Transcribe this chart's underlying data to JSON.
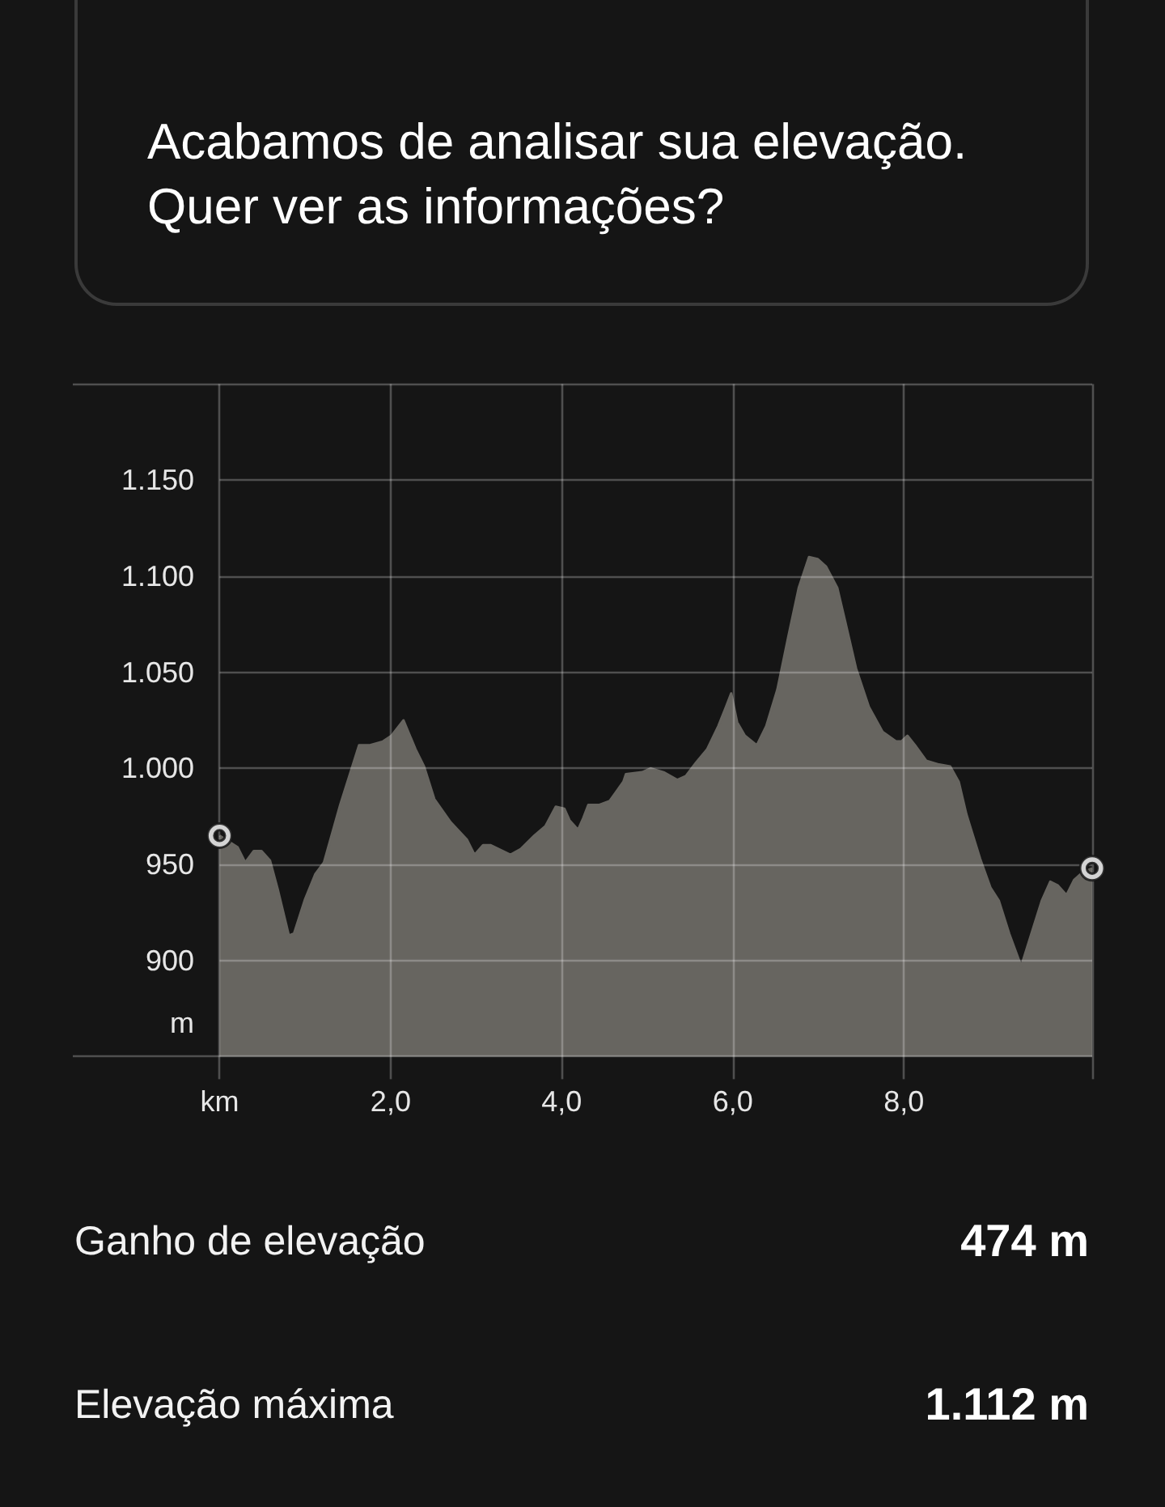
{
  "chart_data": {
    "type": "area",
    "title": "Acabamos de analisar sua elevação. Quer ver as informações?",
    "ylabel": "m",
    "xlim": [
      0,
      10.2
    ],
    "ylim": [
      850,
      1200
    ],
    "xticks": [
      {
        "value": 0,
        "label": "km"
      },
      {
        "value": 2,
        "label": "2,0"
      },
      {
        "value": 4,
        "label": "4,0"
      },
      {
        "value": 6,
        "label": "6,0"
      },
      {
        "value": 8,
        "label": "8,0"
      },
      {
        "value": 10.2,
        "label": null
      }
    ],
    "yticks": [
      {
        "value": 850,
        "label": null
      },
      900,
      950,
      {
        "value": 1000,
        "label": "1.000"
      },
      {
        "value": 1050,
        "label": "1.050"
      },
      {
        "value": 1100,
        "label": "1.100"
      },
      {
        "value": 1150,
        "label": "1.150"
      },
      {
        "value": 1200,
        "label": null
      }
    ],
    "grid": true,
    "series": [
      {
        "color": "#676560",
        "x": [
          0,
          0.21,
          0.3,
          0.4,
          0.49,
          0.59,
          0.68,
          0.81,
          0.87,
          1.0,
          1.12,
          1.22,
          1.41,
          1.63,
          1.75,
          1.91,
          2.01,
          2.15,
          2.29,
          2.39,
          2.51,
          2.7,
          2.89,
          2.98,
          3.08,
          3.17,
          3.4,
          3.52,
          3.68,
          3.81,
          3.93,
          4.03,
          4.09,
          4.19,
          4.25,
          4.31,
          4.44,
          4.56,
          4.72,
          4.75,
          4.94,
          5.04,
          5.19,
          5.35,
          5.45,
          5.57,
          5.7,
          5.83,
          5.92,
          5.98,
          6.05,
          6.14,
          6.28,
          6.39,
          6.52,
          6.65,
          6.77,
          6.89,
          6.99,
          7.09,
          7.22,
          7.31,
          7.44,
          7.59,
          7.75,
          7.91,
          7.97,
          8.04,
          8.13,
          8.26,
          8.41,
          8.54,
          8.64,
          8.73,
          8.89,
          9.01,
          9.11,
          9.23,
          9.37,
          9.49,
          9.61,
          9.71,
          9.8,
          9.9,
          9.99,
          10.09,
          10.2
        ],
        "values": [
          965,
          959,
          951,
          957,
          957,
          952,
          937,
          913,
          914,
          932,
          945,
          951,
          981,
          1012,
          1012,
          1014,
          1017,
          1025,
          1010,
          1001,
          984,
          972,
          963,
          955,
          960,
          960,
          955,
          958,
          965,
          970,
          980,
          979,
          973,
          968,
          974,
          981,
          981,
          983,
          993,
          997,
          998,
          1000,
          998,
          994,
          996,
          1003,
          1010,
          1022,
          1032,
          1039,
          1024,
          1017,
          1012,
          1022,
          1041,
          1069,
          1094,
          1110,
          1109,
          1105,
          1094,
          1077,
          1052,
          1032,
          1019,
          1014,
          1014,
          1017,
          1012,
          1004,
          1002,
          1001,
          993,
          976,
          953,
          938,
          931,
          914,
          897,
          914,
          931,
          941,
          939,
          934,
          942,
          946,
          948
        ]
      },
      {
        "type": "scatter",
        "color": "#d4d4d4",
        "marker": "circle",
        "x": [
          0,
          10.2
        ],
        "values": [
          965,
          948
        ]
      }
    ],
    "annotations": [
      "Ganho de elevação",
      "474 m",
      "Elevação máxima",
      "1.112 m"
    ]
  }
}
